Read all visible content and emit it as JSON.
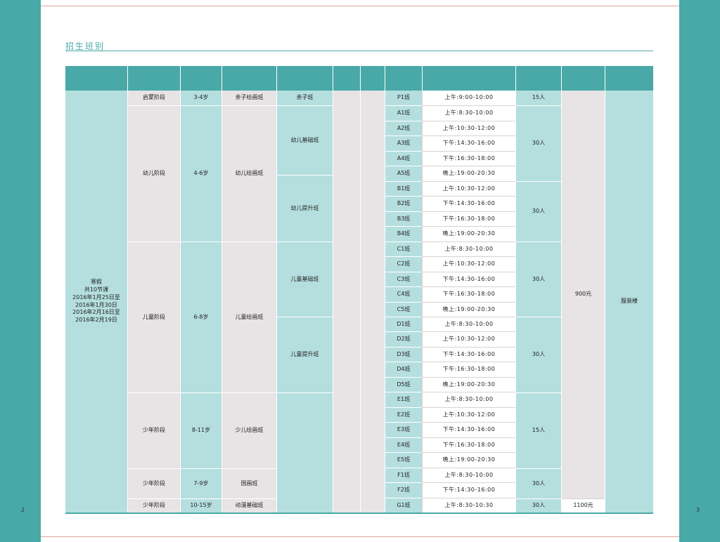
{
  "page": {
    "title": "招生班别",
    "page_left": "2",
    "page_right": "3"
  },
  "term": {
    "name": "寒假",
    "lessons": "共10节课",
    "dates": [
      "2016年1月25日至",
      "2016年1月30日",
      "2016年2月16日至",
      "2016年2月19日"
    ]
  },
  "price_main": "900元",
  "price_anime": "1100元",
  "location": "服装楼",
  "stages": {
    "enlighten": {
      "stage": "启蒙阶段",
      "age": "3-4岁",
      "course": "亲子绘画班",
      "level": "亲子班",
      "capacity": "15人"
    },
    "toddler": {
      "stage": "幼儿阶段",
      "age": "4-6岁",
      "course": "幼儿绘画班",
      "level_basic": "幼儿基础班",
      "level_adv": "幼儿提升班",
      "cap_a": "30人",
      "cap_b": "30人"
    },
    "child": {
      "stage": "儿童阶段",
      "age": "6-8岁",
      "course": "儿童绘画班",
      "level_basic": "儿童基础班",
      "level_adv": "儿童提升班",
      "cap_c": "30人",
      "cap_d": "30人"
    },
    "youth": {
      "stage": "少年阶段",
      "age": "8-11岁",
      "course": "少儿绘画班",
      "capacity": "15人"
    },
    "guohua": {
      "stage": "少年阶段",
      "age": "7-9岁",
      "course": "国画班",
      "capacity": "30人"
    },
    "anime": {
      "stage": "少年阶段",
      "age": "10-15岁",
      "course": "动漫基础班",
      "capacity": "30人"
    }
  },
  "rows": [
    {
      "cls": "P1班",
      "time": "上午:9:00-10:00"
    },
    {
      "cls": "A1班",
      "time": "上午:8:30-10:00"
    },
    {
      "cls": "A2班",
      "time": "上午:10:30-12:00"
    },
    {
      "cls": "A3班",
      "time": "下午:14:30-16:00"
    },
    {
      "cls": "A4班",
      "time": "下午:16:30-18:00"
    },
    {
      "cls": "A5班",
      "time": "晚上:19:00-20:30"
    },
    {
      "cls": "B1班",
      "time": "上午:10:30-12:00"
    },
    {
      "cls": "B2班",
      "time": "下午:14:30-16:00"
    },
    {
      "cls": "B3班",
      "time": "下午:16:30-18:00"
    },
    {
      "cls": "B4班",
      "time": "晚上:19:00-20:30"
    },
    {
      "cls": "C1班",
      "time": "上午:8:30-10:00"
    },
    {
      "cls": "C2班",
      "time": "上午:10:30-12:00"
    },
    {
      "cls": "C3班",
      "time": "下午:14:30-16:00"
    },
    {
      "cls": "C4班",
      "time": "下午:16:30-18:00"
    },
    {
      "cls": "C5班",
      "time": "晚上:19:00-20:30"
    },
    {
      "cls": "D1班",
      "time": "上午:8:30-10:00"
    },
    {
      "cls": "D2班",
      "time": "上午:10:30-12:00"
    },
    {
      "cls": "D3班",
      "time": "下午:14:30-16:00"
    },
    {
      "cls": "D4班",
      "time": "下午:16:30-18:00"
    },
    {
      "cls": "D5班",
      "time": "晚上:19:00-20:30"
    },
    {
      "cls": "E1班",
      "time": "上午:8:30-10:00"
    },
    {
      "cls": "E2班",
      "time": "上午:10:30-12:00"
    },
    {
      "cls": "E3班",
      "time": "下午:14:30-16:00"
    },
    {
      "cls": "E4班",
      "time": "下午:16:30-18:00"
    },
    {
      "cls": "E5班",
      "time": "晚上:19:00-20:30"
    },
    {
      "cls": "F1班",
      "time": "上午:8:30-10:00"
    },
    {
      "cls": "F2班",
      "time": "下午:14:30-16:00"
    },
    {
      "cls": "G1班",
      "time": "上午:8:30-10:30"
    }
  ]
}
